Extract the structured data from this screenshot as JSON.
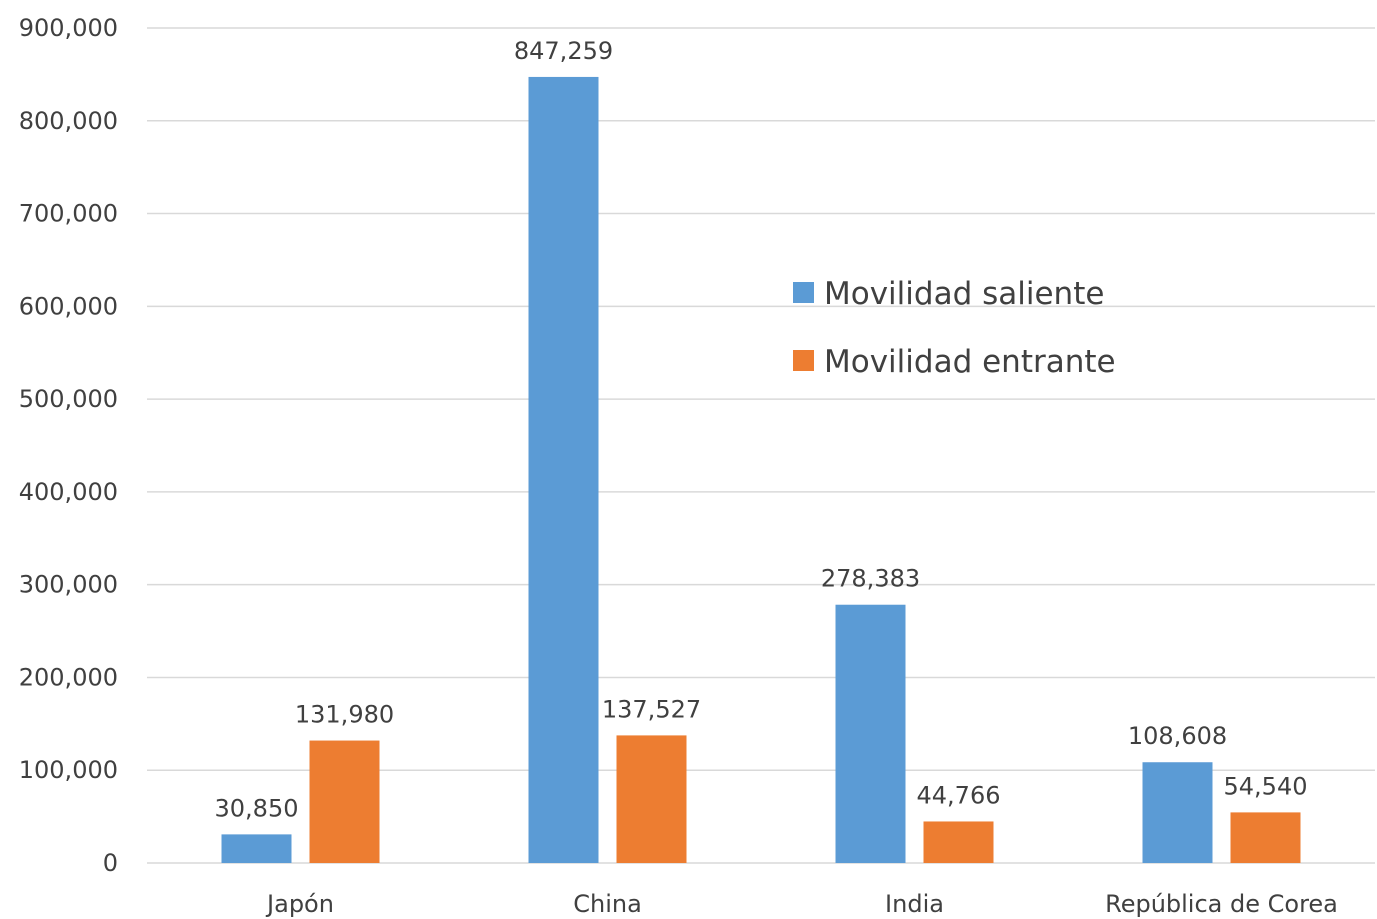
{
  "chart_data": {
    "type": "bar",
    "title": "",
    "xlabel": "",
    "ylabel": "",
    "categories": [
      "Japón",
      "China",
      "India",
      "República de Corea"
    ],
    "series": [
      {
        "name": "Movilidad saliente",
        "color": "#5b9bd5",
        "values": [
          30850,
          847259,
          278383,
          108608
        ],
        "labels": [
          "30,850",
          "847,259",
          "278,383",
          "108,608"
        ]
      },
      {
        "name": "Movilidad entrante",
        "color": "#ed7d31",
        "values": [
          131980,
          137527,
          44766,
          54540
        ],
        "labels": [
          "131,980",
          "137,527",
          "44,766",
          "54,540"
        ]
      }
    ],
    "ylim": [
      0,
      900000
    ],
    "yticks": [
      0,
      100000,
      200000,
      300000,
      400000,
      500000,
      600000,
      700000,
      800000,
      900000
    ],
    "ytick_labels": [
      "0",
      "100,000",
      "200,000",
      "300,000",
      "400,000",
      "500,000",
      "600,000",
      "700,000",
      "800,000",
      "900,000"
    ],
    "grid": true,
    "legend_position": "center-right"
  }
}
